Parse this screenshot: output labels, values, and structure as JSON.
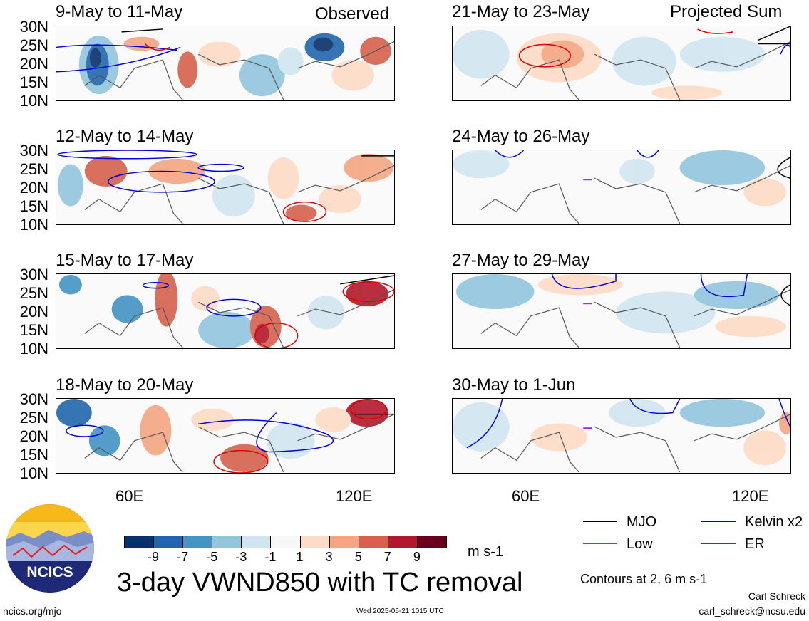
{
  "left_column_header": "Observed",
  "right_column_header": "Projected Sum",
  "panels_left": [
    {
      "title": "9-May to 11-May"
    },
    {
      "title": "12-May to 14-May"
    },
    {
      "title": "15-May to 17-May"
    },
    {
      "title": "18-May to 20-May"
    }
  ],
  "panels_right": [
    {
      "title": "21-May to 23-May"
    },
    {
      "title": "24-May to 26-May"
    },
    {
      "title": "27-May to 29-May"
    },
    {
      "title": "30-May to 1-Jun"
    }
  ],
  "lat_labels": [
    "30N",
    "25N",
    "20N",
    "15N",
    "10N"
  ],
  "lon_labels": [
    "60E",
    "120E"
  ],
  "colorbar": {
    "ticks": [
      "-9",
      "-7",
      "-5",
      "-3",
      "-1",
      "1",
      "3",
      "5",
      "7",
      "9"
    ],
    "colors": [
      "#08306b",
      "#2166ac",
      "#4393c3",
      "#92c5de",
      "#d1e5f0",
      "#f7f7f7",
      "#fddbc7",
      "#f4a582",
      "#d6604d",
      "#b2182b",
      "#67001f"
    ],
    "units": "m s-1"
  },
  "main_title": "3-day VWND850 with TC removal",
  "legend": [
    {
      "label": "MJO",
      "color": "#000000"
    },
    {
      "label": "Kelvin x2",
      "color": "#0000dd"
    },
    {
      "label": "Low",
      "color": "#a020f0"
    },
    {
      "label": "ER",
      "color": "#dd0000"
    }
  ],
  "contour_note": "Contours at 2, 6 m s-1",
  "logo_text": "NCICS",
  "footer_left": "ncics.org/mjo",
  "footer_center": "Wed 2025-05-21 1015 UTC",
  "author": "Carl Schreck",
  "author_email": "carl_schreck@ncsu.edu"
}
